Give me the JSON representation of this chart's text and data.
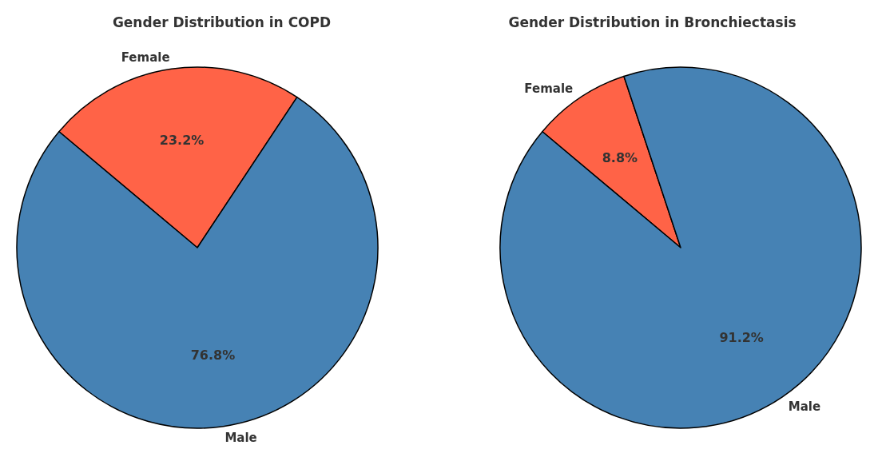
{
  "chart_data": [
    {
      "type": "pie",
      "title": "Gender Distribution in COPD",
      "categories": [
        "Female",
        "Male"
      ],
      "values": [
        23.2,
        76.8
      ],
      "colors": [
        "#ff6347",
        "#4682b4"
      ],
      "value_labels": [
        "23.2%",
        "76.8%"
      ]
    },
    {
      "type": "pie",
      "title": "Gender Distribution in Bronchiectasis",
      "categories": [
        "Female",
        "Male"
      ],
      "values": [
        8.8,
        91.2
      ],
      "colors": [
        "#ff6347",
        "#4682b4"
      ],
      "value_labels": [
        "8.8%",
        "91.2%"
      ]
    }
  ]
}
